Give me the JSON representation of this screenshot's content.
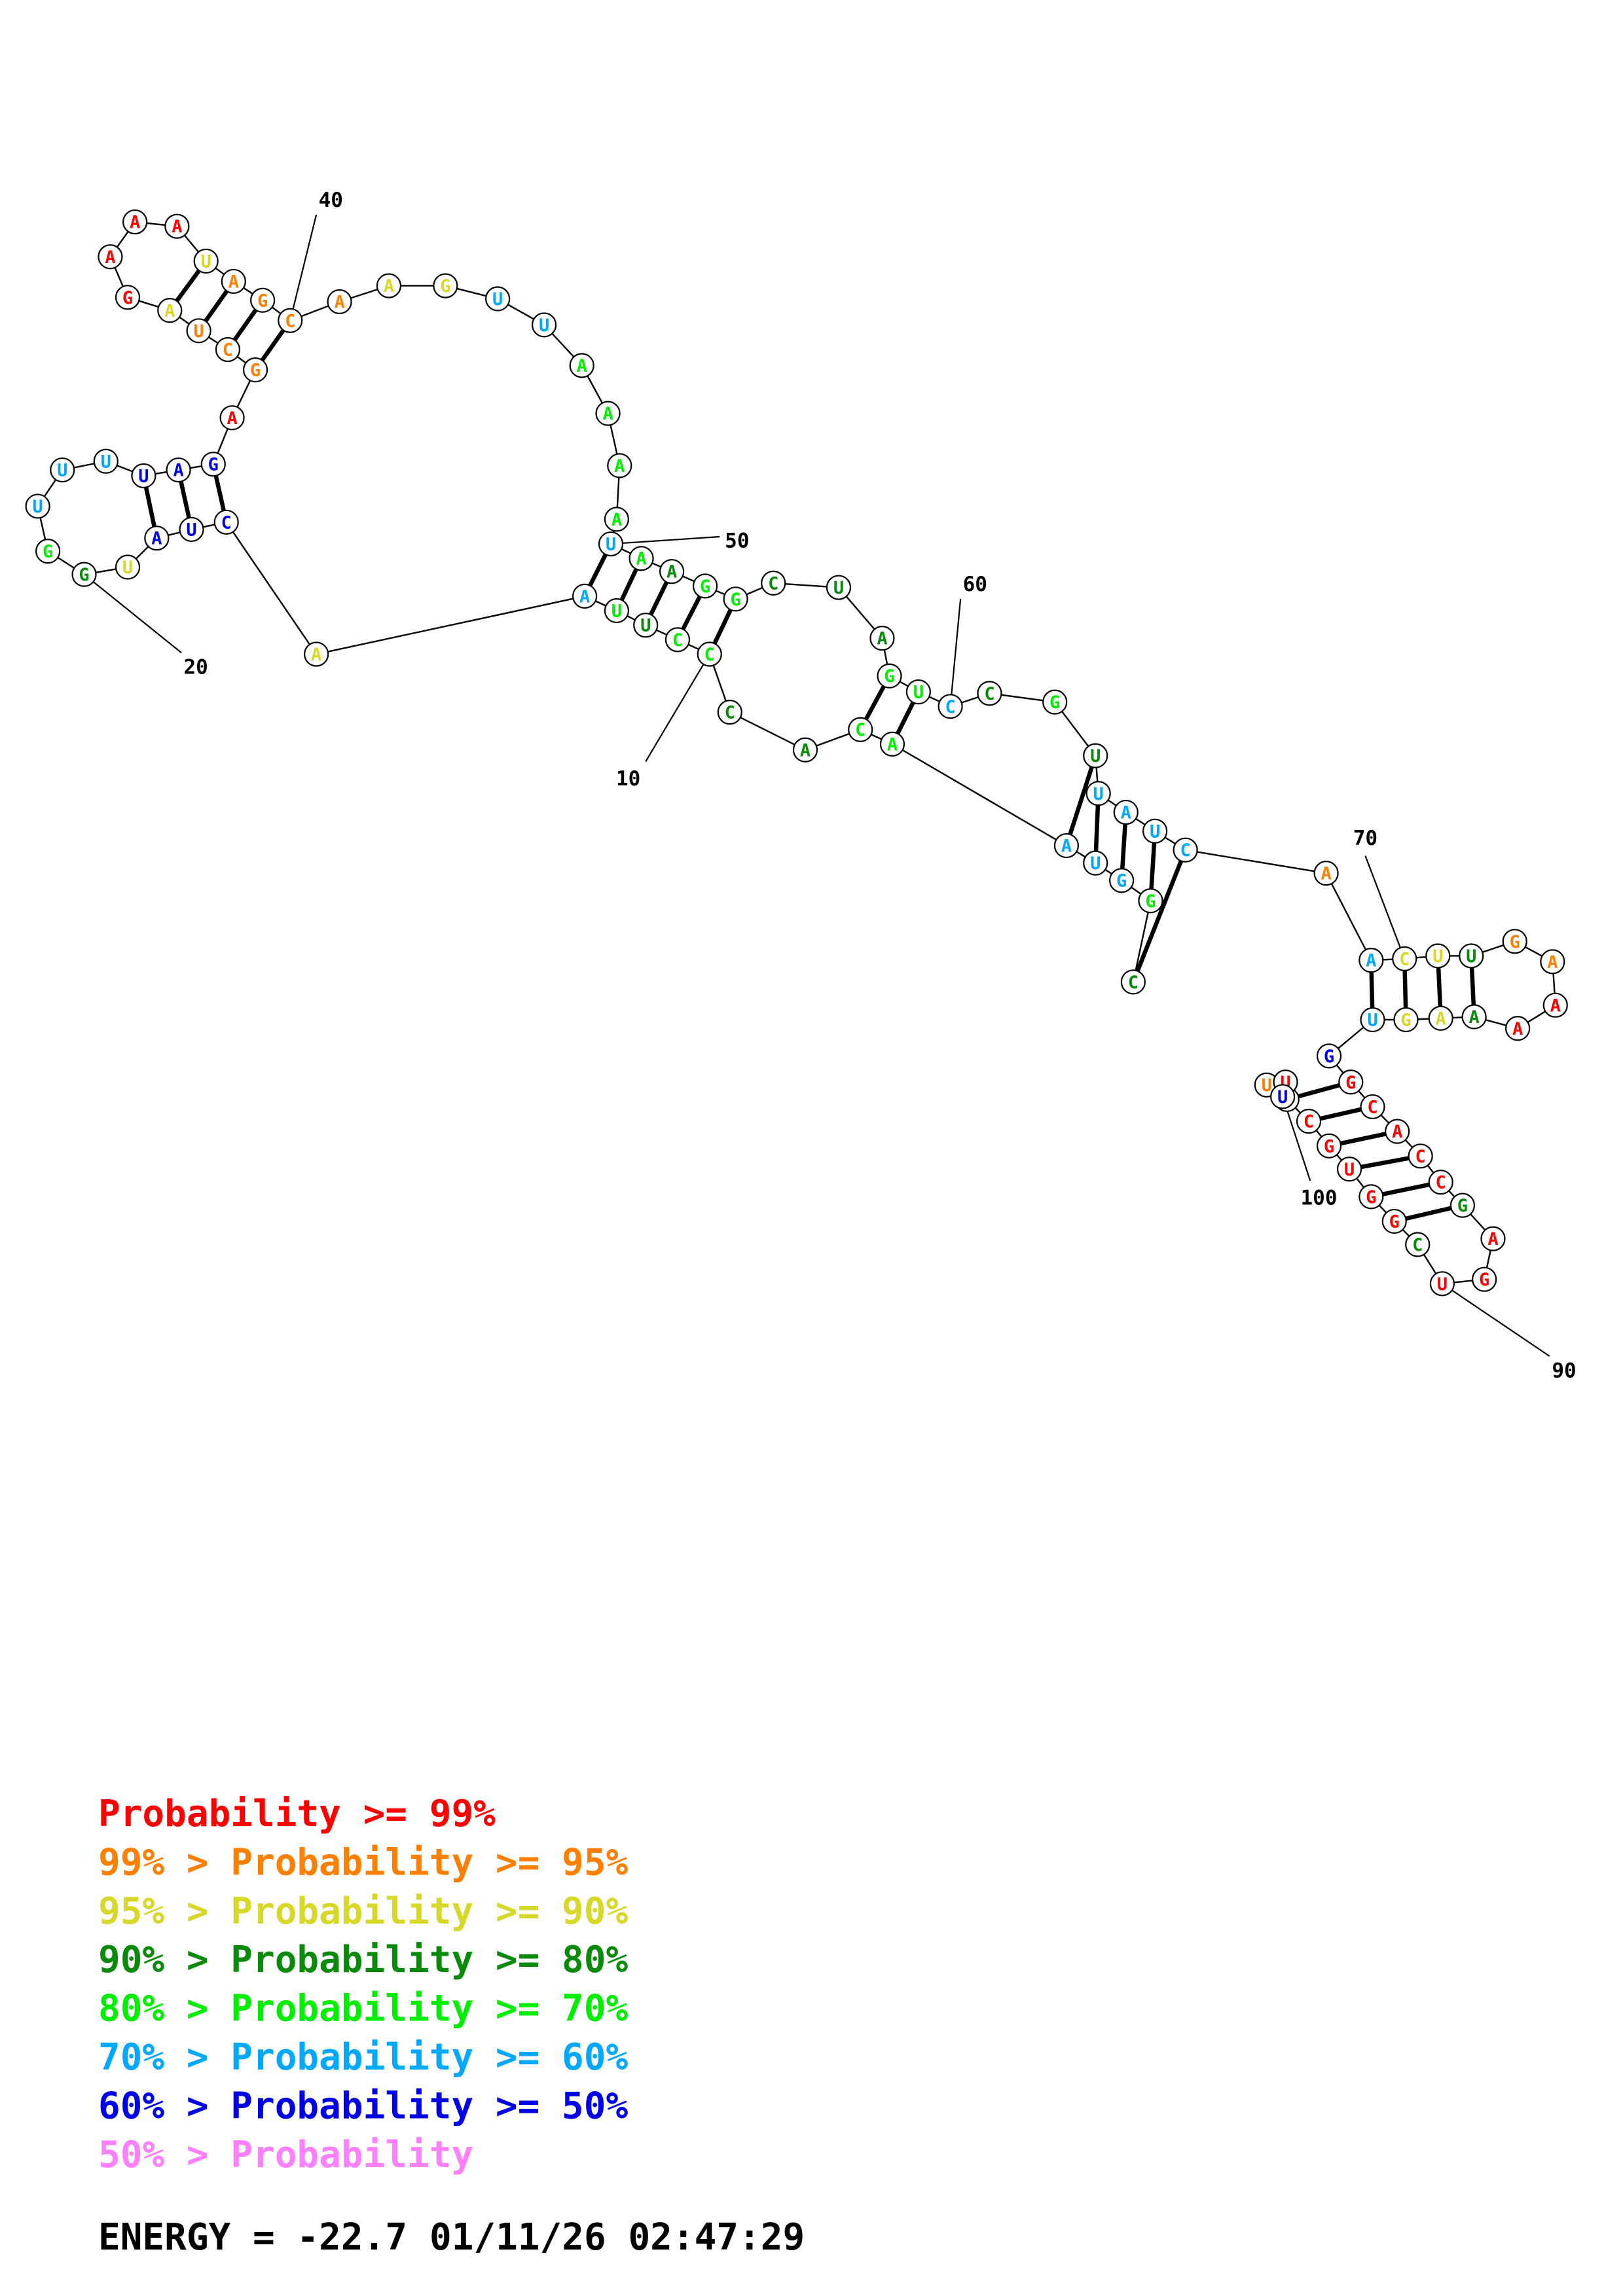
{
  "colors": {
    "c99": "#ff0000",
    "c95": "#ff8000",
    "c90": "#d8d82a",
    "c80": "#0a8a0a",
    "c70": "#00ee00",
    "c60": "#00a8ff",
    "c50": "#0000e8",
    "clow": "#ff80ff"
  },
  "structure": {
    "nucleotides": [
      {
        "base": "C",
        "c": "c80"
      },
      {
        "base": "G",
        "c": "c70"
      },
      {
        "base": "G",
        "c": "c60"
      },
      {
        "base": "U",
        "c": "c60"
      },
      {
        "base": "A",
        "c": "c60"
      },
      {
        "base": "A",
        "c": "c70"
      },
      {
        "base": "C",
        "c": "c70"
      },
      {
        "base": "A",
        "c": "c80"
      },
      {
        "base": "C",
        "c": "c80"
      },
      {
        "base": "C",
        "c": "c70"
      },
      {
        "base": "C",
        "c": "c70"
      },
      {
        "base": "U",
        "c": "c80"
      },
      {
        "base": "U",
        "c": "c70"
      },
      {
        "base": "A",
        "c": "c60"
      },
      {
        "base": "A",
        "c": "c90"
      },
      {
        "base": "C",
        "c": "c50"
      },
      {
        "base": "U",
        "c": "c50"
      },
      {
        "base": "A",
        "c": "c50"
      },
      {
        "base": "U",
        "c": "c90"
      },
      {
        "base": "G",
        "c": "c80"
      },
      {
        "base": "G",
        "c": "c70"
      },
      {
        "base": "U",
        "c": "c60"
      },
      {
        "base": "U",
        "c": "c60"
      },
      {
        "base": "U",
        "c": "c60"
      },
      {
        "base": "U",
        "c": "c50"
      },
      {
        "base": "A",
        "c": "c50"
      },
      {
        "base": "G",
        "c": "c50"
      },
      {
        "base": "A",
        "c": "c99"
      },
      {
        "base": "G",
        "c": "c95"
      },
      {
        "base": "C",
        "c": "c95"
      },
      {
        "base": "U",
        "c": "c95"
      },
      {
        "base": "A",
        "c": "c90"
      },
      {
        "base": "G",
        "c": "c99"
      },
      {
        "base": "A",
        "c": "c99"
      },
      {
        "base": "A",
        "c": "c99"
      },
      {
        "base": "A",
        "c": "c99"
      },
      {
        "base": "U",
        "c": "c90"
      },
      {
        "base": "A",
        "c": "c95"
      },
      {
        "base": "G",
        "c": "c95"
      },
      {
        "base": "C",
        "c": "c95"
      },
      {
        "base": "A",
        "c": "c95"
      },
      {
        "base": "A",
        "c": "c90"
      },
      {
        "base": "G",
        "c": "c90"
      },
      {
        "base": "U",
        "c": "c60"
      },
      {
        "base": "U",
        "c": "c60"
      },
      {
        "base": "A",
        "c": "c70"
      },
      {
        "base": "A",
        "c": "c70"
      },
      {
        "base": "A",
        "c": "c70"
      },
      {
        "base": "A",
        "c": "c70"
      },
      {
        "base": "U",
        "c": "c60"
      },
      {
        "base": "A",
        "c": "c70"
      },
      {
        "base": "A",
        "c": "c80"
      },
      {
        "base": "G",
        "c": "c70"
      },
      {
        "base": "G",
        "c": "c70"
      },
      {
        "base": "C",
        "c": "c80"
      },
      {
        "base": "U",
        "c": "c80"
      },
      {
        "base": "A",
        "c": "c80"
      },
      {
        "base": "G",
        "c": "c70"
      },
      {
        "base": "U",
        "c": "c70"
      },
      {
        "base": "C",
        "c": "c60"
      },
      {
        "base": "C",
        "c": "c80"
      },
      {
        "base": "G",
        "c": "c70"
      },
      {
        "base": "U",
        "c": "c80"
      },
      {
        "base": "U",
        "c": "c60"
      },
      {
        "base": "A",
        "c": "c60"
      },
      {
        "base": "U",
        "c": "c60"
      },
      {
        "base": "C",
        "c": "c60"
      },
      {
        "base": "A",
        "c": "c95"
      },
      {
        "base": "A",
        "c": "c60"
      },
      {
        "base": "C",
        "c": "c90"
      },
      {
        "base": "U",
        "c": "c90"
      },
      {
        "base": "U",
        "c": "c80"
      },
      {
        "base": "G",
        "c": "c95"
      },
      {
        "base": "A",
        "c": "c95"
      },
      {
        "base": "A",
        "c": "c99"
      },
      {
        "base": "A",
        "c": "c99"
      },
      {
        "base": "A",
        "c": "c80"
      },
      {
        "base": "A",
        "c": "c90"
      },
      {
        "base": "G",
        "c": "c90"
      },
      {
        "base": "U",
        "c": "c60"
      },
      {
        "base": "G",
        "c": "c50"
      },
      {
        "base": "G",
        "c": "c99"
      },
      {
        "base": "C",
        "c": "c99"
      },
      {
        "base": "A",
        "c": "c99"
      },
      {
        "base": "C",
        "c": "c99"
      },
      {
        "base": "C",
        "c": "c99"
      },
      {
        "base": "G",
        "c": "c80"
      },
      {
        "base": "A",
        "c": "c99"
      },
      {
        "base": "G",
        "c": "c99"
      },
      {
        "base": "U",
        "c": "c99"
      },
      {
        "base": "C",
        "c": "c80"
      },
      {
        "base": "G",
        "c": "c99"
      },
      {
        "base": "G",
        "c": "c99"
      },
      {
        "base": "U",
        "c": "c99"
      },
      {
        "base": "G",
        "c": "c99"
      },
      {
        "base": "C",
        "c": "c99"
      },
      {
        "base": "U",
        "c": "c99"
      },
      {
        "base": "U",
        "c": "c95"
      },
      {
        "base": "U",
        "c": "c99"
      },
      {
        "base": "U",
        "c": "c50"
      }
    ],
    "position_labels": [
      {
        "text": "10",
        "at": 9
      },
      {
        "text": "20",
        "at": 19
      },
      {
        "text": "40",
        "at": 39
      },
      {
        "text": "50",
        "at": 49
      },
      {
        "text": "60",
        "at": 59
      },
      {
        "text": "70",
        "at": 69
      },
      {
        "text": "90",
        "at": 89
      },
      {
        "text": "100",
        "at": 99
      }
    ]
  },
  "legend": [
    {
      "prefix": "",
      "label": "Probability >= 99%",
      "c": "c99"
    },
    {
      "prefix": "99% > ",
      "label": "Probability >= 95%",
      "c": "c95"
    },
    {
      "prefix": "95% > ",
      "label": "Probability >= 90%",
      "c": "c90"
    },
    {
      "prefix": "90% > ",
      "label": "Probability >= 80%",
      "c": "c80"
    },
    {
      "prefix": "80% > ",
      "label": "Probability >= 70%",
      "c": "c70"
    },
    {
      "prefix": "70% > ",
      "label": "Probability >= 60%",
      "c": "c60"
    },
    {
      "prefix": "60% > ",
      "label": "Probability >= 50%",
      "c": "c50"
    },
    {
      "prefix": "50% > ",
      "label": "Probability",
      "c": "clow"
    }
  ],
  "footer": {
    "energy": "ENERGY = -22.7",
    "timestamp": "01/11/26 02:47:29"
  }
}
